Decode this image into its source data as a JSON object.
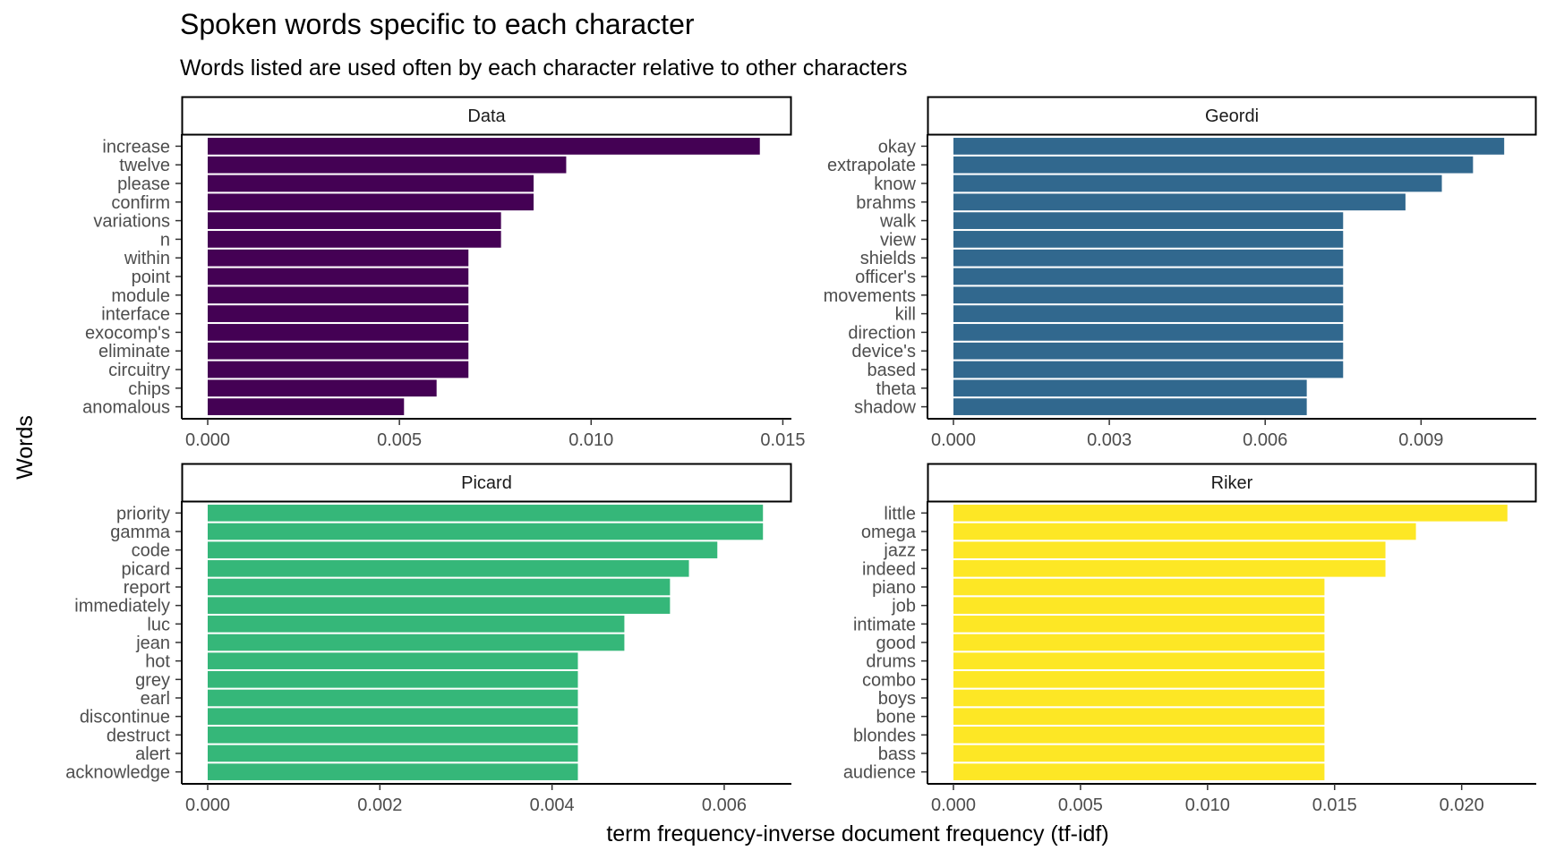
{
  "chart_data": {
    "type": "bar",
    "orientation": "horizontal",
    "title": "Spoken words specific to each character",
    "subtitle": "Words listed are used often by each character relative to other characters",
    "xlabel": "term frequency-inverse document frequency (tf-idf)",
    "ylabel": "Words",
    "grid": false,
    "legend": "none",
    "facets": [
      {
        "name": "Data",
        "color": "#440154",
        "xlim": [
          0,
          0.0152
        ],
        "ticks": [
          0.0,
          0.005,
          0.01,
          0.015
        ],
        "tick_labels": [
          "0.000",
          "0.005",
          "0.010",
          "0.015"
        ],
        "categories": [
          "increase",
          "twelve",
          "please",
          "confirm",
          "variations",
          "n",
          "within",
          "point",
          "module",
          "interface",
          "exocomp's",
          "eliminate",
          "circuitry",
          "chips",
          "anomalous"
        ],
        "values": [
          0.0144,
          0.00935,
          0.0085,
          0.0085,
          0.00765,
          0.00765,
          0.0068,
          0.0068,
          0.0068,
          0.0068,
          0.0068,
          0.0068,
          0.0068,
          0.00597,
          0.00512
        ]
      },
      {
        "name": "Geordi",
        "color": "#31688E",
        "xlim": [
          0,
          0.0112
        ],
        "ticks": [
          0.0,
          0.003,
          0.006,
          0.009
        ],
        "tick_labels": [
          "0.000",
          "0.003",
          "0.006",
          "0.009"
        ],
        "categories": [
          "okay",
          "extrapolate",
          "know",
          "brahms",
          "walk",
          "view",
          "shields",
          "officer's",
          "movements",
          "kill",
          "direction",
          "device's",
          "based",
          "theta",
          "shadow"
        ],
        "values": [
          0.0106,
          0.01,
          0.0094,
          0.0087,
          0.0075,
          0.0075,
          0.0075,
          0.0075,
          0.0075,
          0.0075,
          0.0075,
          0.0075,
          0.0075,
          0.0068,
          0.0068
        ]
      },
      {
        "name": "Picard",
        "color": "#35B779",
        "xlim": [
          0,
          0.00677
        ],
        "ticks": [
          0.0,
          0.002,
          0.004,
          0.006
        ],
        "tick_labels": [
          "0.000",
          "0.002",
          "0.004",
          "0.006"
        ],
        "categories": [
          "priority",
          "gamma",
          "code",
          "picard",
          "report",
          "immediately",
          "luc",
          "jean",
          "hot",
          "grey",
          "earl",
          "discontinue",
          "destruct",
          "alert",
          "acknowledge"
        ],
        "values": [
          0.00645,
          0.00645,
          0.00592,
          0.00559,
          0.00537,
          0.00537,
          0.00484,
          0.00484,
          0.0043,
          0.0043,
          0.0043,
          0.0043,
          0.0043,
          0.0043,
          0.0043
        ]
      },
      {
        "name": "Riker",
        "color": "#FDE725",
        "xlim": [
          0,
          0.0229
        ],
        "ticks": [
          0.0,
          0.005,
          0.01,
          0.015,
          0.02
        ],
        "tick_labels": [
          "0.000",
          "0.005",
          "0.010",
          "0.015",
          "0.020"
        ],
        "categories": [
          "little",
          "omega",
          "jazz",
          "indeed",
          "piano",
          "job",
          "intimate",
          "good",
          "drums",
          "combo",
          "boys",
          "bone",
          "blondes",
          "bass",
          "audience"
        ],
        "values": [
          0.0218,
          0.0182,
          0.017,
          0.017,
          0.0146,
          0.0146,
          0.0146,
          0.0146,
          0.0146,
          0.0146,
          0.0146,
          0.0146,
          0.0146,
          0.0146,
          0.0146
        ]
      }
    ]
  }
}
